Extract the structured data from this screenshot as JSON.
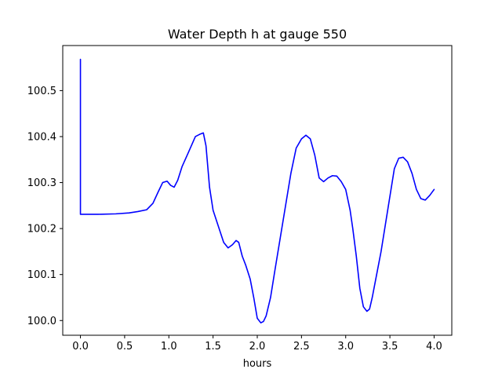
{
  "chart_data": {
    "type": "line",
    "title": "Water Depth h at gauge 550",
    "xlabel": "hours",
    "ylabel": "",
    "xlim": [
      -0.2,
      4.2
    ],
    "ylim": [
      99.968,
      100.598
    ],
    "xticks": [
      0.0,
      0.5,
      1.0,
      1.5,
      2.0,
      2.5,
      3.0,
      3.5,
      4.0
    ],
    "xtick_labels": [
      "0.0",
      "0.5",
      "1.0",
      "1.5",
      "2.0",
      "2.5",
      "3.0",
      "3.5",
      "4.0"
    ],
    "yticks": [
      100.0,
      100.1,
      100.2,
      100.3,
      100.4,
      100.5
    ],
    "ytick_labels": [
      "100.0",
      "100.1",
      "100.2",
      "100.3",
      "100.4",
      "100.5"
    ],
    "grid": false,
    "colors": {
      "line": "#0000ff",
      "axes": "#000000",
      "background": "#ffffff"
    },
    "series": [
      {
        "name": "",
        "x": [
          0.0,
          0.0,
          0.0,
          0.2,
          0.4,
          0.55,
          0.65,
          0.75,
          0.82,
          0.88,
          0.93,
          0.98,
          1.02,
          1.06,
          1.1,
          1.15,
          1.22,
          1.3,
          1.35,
          1.39,
          1.42,
          1.46,
          1.5,
          1.56,
          1.62,
          1.67,
          1.72,
          1.76,
          1.79,
          1.83,
          1.87,
          1.92,
          1.96,
          2.0,
          2.04,
          2.07,
          2.1,
          2.15,
          2.2,
          2.26,
          2.32,
          2.38,
          2.44,
          2.5,
          2.55,
          2.6,
          2.65,
          2.7,
          2.75,
          2.8,
          2.85,
          2.9,
          2.95,
          3.0,
          3.05,
          3.08,
          3.12,
          3.16,
          3.2,
          3.24,
          3.27,
          3.3,
          3.35,
          3.4,
          3.45,
          3.5,
          3.55,
          3.6,
          3.65,
          3.7,
          3.75,
          3.8,
          3.85,
          3.9,
          3.95,
          4.0
        ],
        "y": [
          100.568,
          100.232,
          100.231,
          100.231,
          100.232,
          100.234,
          100.237,
          100.241,
          100.255,
          100.28,
          100.3,
          100.303,
          100.294,
          100.29,
          100.305,
          100.335,
          100.365,
          100.4,
          100.405,
          100.408,
          100.38,
          100.29,
          100.24,
          100.205,
          100.17,
          100.158,
          100.165,
          100.174,
          100.17,
          100.14,
          100.12,
          100.09,
          100.05,
          100.005,
          99.995,
          99.998,
          100.01,
          100.05,
          100.11,
          100.18,
          100.25,
          100.32,
          100.375,
          100.395,
          100.403,
          100.395,
          100.36,
          100.31,
          100.302,
          100.31,
          100.315,
          100.314,
          100.302,
          100.285,
          100.24,
          100.2,
          100.14,
          100.07,
          100.03,
          100.02,
          100.025,
          100.05,
          100.1,
          100.15,
          100.21,
          100.27,
          100.33,
          100.353,
          100.355,
          100.345,
          100.32,
          100.285,
          100.265,
          100.262,
          100.272,
          100.285
        ]
      }
    ]
  }
}
